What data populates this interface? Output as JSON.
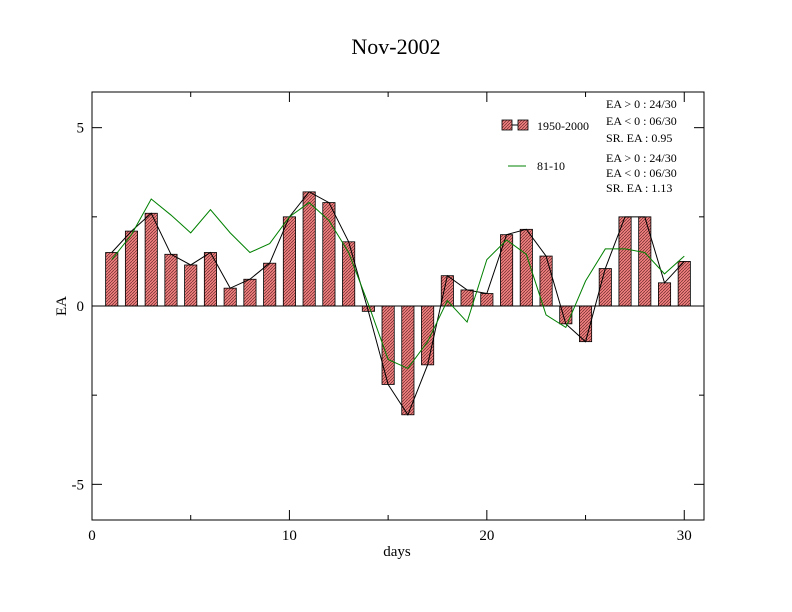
{
  "chart_data": {
    "type": "bar",
    "title": "Nov-2002",
    "xlabel": "days",
    "ylabel": "EA",
    "xlim": [
      0,
      31
    ],
    "ylim": [
      -6,
      6
    ],
    "x_ticks": [
      0,
      10,
      20,
      30
    ],
    "y_ticks": [
      -5,
      0,
      5
    ],
    "x": [
      1,
      2,
      3,
      4,
      5,
      6,
      7,
      8,
      9,
      10,
      11,
      12,
      13,
      14,
      15,
      16,
      17,
      18,
      19,
      20,
      21,
      22,
      23,
      24,
      25,
      26,
      27,
      28,
      29,
      30
    ],
    "series": [
      {
        "name": "1950-2000",
        "style": "bar+line",
        "color": "#f08080",
        "line_color": "#000000",
        "values": [
          1.5,
          2.1,
          2.6,
          1.45,
          1.15,
          1.5,
          0.5,
          0.75,
          1.2,
          2.5,
          3.2,
          2.9,
          1.8,
          -0.15,
          -2.2,
          -3.05,
          -1.65,
          0.85,
          0.45,
          0.35,
          2.0,
          2.15,
          1.4,
          -0.5,
          -1.0,
          1.05,
          2.5,
          2.5,
          0.65,
          1.25
        ]
      },
      {
        "name": "81-10",
        "style": "line",
        "color": "#008000",
        "values": [
          1.3,
          2.0,
          3.0,
          2.55,
          2.05,
          2.7,
          2.05,
          1.5,
          1.75,
          2.5,
          2.9,
          2.4,
          1.5,
          0.05,
          -1.5,
          -1.75,
          -1.0,
          0.15,
          -0.45,
          1.3,
          1.85,
          1.45,
          -0.25,
          -0.6,
          0.7,
          1.6,
          1.6,
          1.5,
          0.9,
          1.4
        ]
      }
    ],
    "legend_position": "top-right",
    "stats": [
      [
        "EA > 0 : 24/30",
        "EA < 0 : 06/30",
        "SR. EA :  0.95"
      ],
      [
        "EA > 0 : 24/30",
        "EA < 0 : 06/30",
        "SR. EA :  1.13"
      ]
    ]
  }
}
